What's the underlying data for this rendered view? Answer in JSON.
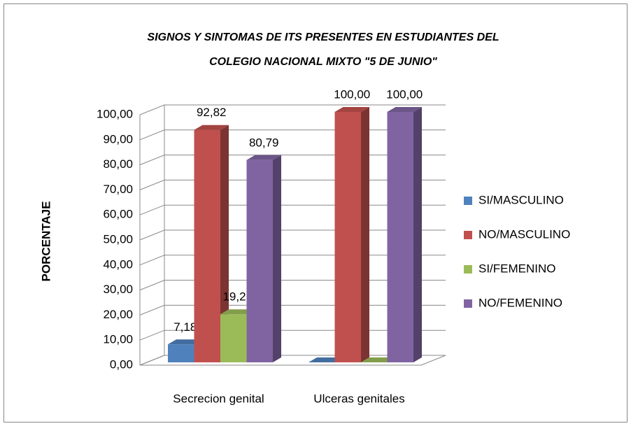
{
  "chart_data": {
    "type": "bar3d",
    "title": "SIGNOS Y SINTOMAS DE ITS PRESENTES EN ESTUDIANTES DEL COLEGIO NACIONAL MIXTO \"5 DE JUNIO\"",
    "y_label": "PORCENTAJE",
    "categories": [
      "Secrecion genital",
      "Ulceras genitales"
    ],
    "series": [
      {
        "name": "SI/MASCULINO",
        "color": "#4f81bd",
        "values": [
          7.18,
          0
        ],
        "value_labels": [
          "7,18",
          null
        ]
      },
      {
        "name": "NO/MASCULINO",
        "color": "#c0504d",
        "values": [
          92.82,
          100
        ],
        "value_labels": [
          "92,82",
          "100,00"
        ]
      },
      {
        "name": "SI/FEMENINO",
        "color": "#9bbb59",
        "values": [
          19.21,
          0
        ],
        "value_labels": [
          "19,21",
          null
        ]
      },
      {
        "name": "NO/FEMENINO",
        "color": "#8064a2",
        "values": [
          80.79,
          100
        ],
        "value_labels": [
          "80,79",
          "100,00"
        ]
      }
    ],
    "ylim": [
      0,
      100
    ],
    "yticks": [
      {
        "value": 0,
        "label": "0,00"
      },
      {
        "value": 10,
        "label": "10,00"
      },
      {
        "value": 20,
        "label": "20,00"
      },
      {
        "value": 30,
        "label": "30,00"
      },
      {
        "value": 40,
        "label": "40,00"
      },
      {
        "value": 50,
        "label": "50,00"
      },
      {
        "value": 60,
        "label": "60,00"
      },
      {
        "value": 70,
        "label": "70,00"
      },
      {
        "value": 80,
        "label": "80,00"
      },
      {
        "value": 90,
        "label": "90,00"
      },
      {
        "value": 100,
        "label": "100,00"
      }
    ],
    "grid": true,
    "legend": "right"
  }
}
